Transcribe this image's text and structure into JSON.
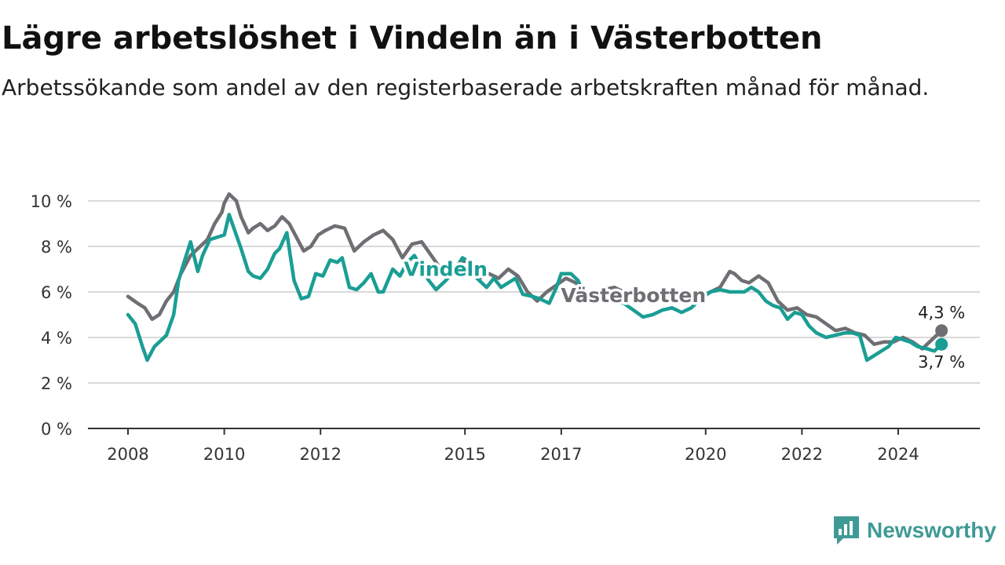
{
  "title": "Lägre arbetslöshet i Vindeln än i Västerbotten",
  "subtitle": "Arbetssökande som andel av den registerbaserade arbetskraften månad för månad.",
  "brand": "Newsworthy",
  "colors": {
    "vindeln": "#1a9e94",
    "vasterbotten": "#6e6e73",
    "grid": "#d9d9d9",
    "axis": "#333333",
    "brand": "#3f9a96"
  },
  "chart_data": {
    "type": "line",
    "x_type": "year",
    "xlim": [
      2008,
      2025.7
    ],
    "ylim": [
      0,
      10
    ],
    "y_ticks": [
      {
        "value": 0,
        "label": "0 %"
      },
      {
        "value": 2,
        "label": "2 %"
      },
      {
        "value": 4,
        "label": "4 %"
      },
      {
        "value": 6,
        "label": "6 %"
      },
      {
        "value": 8,
        "label": "8 %"
      },
      {
        "value": 10,
        "label": "10 %"
      }
    ],
    "x_ticks": [
      {
        "value": 2008,
        "label": "2008"
      },
      {
        "value": 2010,
        "label": "2010"
      },
      {
        "value": 2012,
        "label": "2012"
      },
      {
        "value": 2015,
        "label": "2015"
      },
      {
        "value": 2017,
        "label": "2017"
      },
      {
        "value": 2020,
        "label": "2020"
      },
      {
        "value": 2022,
        "label": "2022"
      },
      {
        "value": 2024,
        "label": "2024"
      }
    ],
    "grid": true,
    "series": [
      {
        "name": "Västerbotten",
        "key": "vasterbotten",
        "end_label": "4,3 %",
        "x": [
          2008.0,
          2008.2,
          2008.35,
          2008.5,
          2008.65,
          2008.8,
          2008.95,
          2009.1,
          2009.3,
          2009.5,
          2009.65,
          2009.8,
          2009.95,
          2010.0,
          2010.1,
          2010.25,
          2010.35,
          2010.5,
          2010.6,
          2010.75,
          2010.9,
          2011.05,
          2011.2,
          2011.35,
          2011.5,
          2011.65,
          2011.8,
          2011.95,
          2012.1,
          2012.3,
          2012.5,
          2012.7,
          2012.9,
          2013.1,
          2013.3,
          2013.5,
          2013.7,
          2013.9,
          2014.1,
          2014.3,
          2014.5,
          2014.7,
          2014.9,
          2015.1,
          2015.3,
          2015.5,
          2015.7,
          2015.9,
          2016.1,
          2016.3,
          2016.5,
          2016.7,
          2016.9,
          2017.1,
          2017.3,
          2017.5,
          2017.7,
          2017.9,
          2018.1,
          2018.3,
          2018.5,
          2018.7,
          2018.9,
          2019.1,
          2019.3,
          2019.5,
          2019.7,
          2019.9,
          2020.1,
          2020.3,
          2020.5,
          2020.6,
          2020.75,
          2020.9,
          2021.1,
          2021.3,
          2021.5,
          2021.7,
          2021.9,
          2022.1,
          2022.3,
          2022.5,
          2022.7,
          2022.9,
          2023.1,
          2023.3,
          2023.5,
          2023.7,
          2023.9,
          2024.1,
          2024.3,
          2024.5,
          2024.7,
          2024.9
        ],
        "y": [
          5.8,
          5.5,
          5.3,
          4.8,
          5.0,
          5.6,
          6.0,
          6.8,
          7.6,
          8.0,
          8.3,
          9.0,
          9.5,
          9.9,
          10.3,
          10.0,
          9.3,
          8.6,
          8.8,
          9.0,
          8.7,
          8.9,
          9.3,
          9.0,
          8.4,
          7.8,
          8.0,
          8.5,
          8.7,
          8.9,
          8.8,
          7.8,
          8.2,
          8.5,
          8.7,
          8.3,
          7.5,
          8.1,
          8.2,
          7.6,
          7.0,
          6.8,
          7.3,
          7.4,
          6.6,
          6.8,
          6.6,
          7.0,
          6.7,
          6.0,
          5.6,
          6.0,
          6.3,
          6.6,
          6.4,
          6.0,
          5.9,
          6.1,
          6.2,
          6.0,
          5.9,
          5.8,
          5.9,
          6.0,
          5.7,
          5.7,
          5.8,
          5.8,
          6.0,
          6.2,
          6.9,
          6.8,
          6.5,
          6.4,
          6.7,
          6.4,
          5.6,
          5.2,
          5.3,
          5.0,
          4.9,
          4.6,
          4.3,
          4.4,
          4.2,
          4.1,
          3.7,
          3.8,
          3.8,
          4.0,
          3.8,
          3.5,
          3.9,
          4.3
        ]
      },
      {
        "name": "Vindeln",
        "key": "vindeln",
        "end_label": "3,7 %",
        "x": [
          2008.0,
          2008.15,
          2008.3,
          2008.4,
          2008.55,
          2008.65,
          2008.8,
          2008.95,
          2009.05,
          2009.15,
          2009.3,
          2009.45,
          2009.55,
          2009.7,
          2009.85,
          2010.0,
          2010.1,
          2010.2,
          2010.35,
          2010.5,
          2010.6,
          2010.75,
          2010.9,
          2011.05,
          2011.15,
          2011.3,
          2011.45,
          2011.6,
          2011.75,
          2011.9,
          2012.05,
          2012.2,
          2012.35,
          2012.45,
          2012.6,
          2012.75,
          2012.9,
          2013.05,
          2013.2,
          2013.3,
          2013.5,
          2013.65,
          2013.8,
          2013.95,
          2014.1,
          2014.25,
          2014.4,
          2014.6,
          2014.8,
          2014.95,
          2015.1,
          2015.25,
          2015.45,
          2015.6,
          2015.75,
          2015.9,
          2016.05,
          2016.2,
          2016.4,
          2016.55,
          2016.75,
          2016.9,
          2017.0,
          2017.2,
          2017.35,
          2017.5,
          2017.7,
          2017.9,
          2018.1,
          2018.3,
          2018.5,
          2018.7,
          2018.9,
          2019.1,
          2019.3,
          2019.5,
          2019.7,
          2019.9,
          2020.1,
          2020.3,
          2020.5,
          2020.65,
          2020.8,
          2020.95,
          2021.1,
          2021.25,
          2021.4,
          2021.55,
          2021.7,
          2021.85,
          2022.0,
          2022.15,
          2022.3,
          2022.5,
          2022.7,
          2022.9,
          2023.05,
          2023.2,
          2023.35,
          2023.5,
          2023.65,
          2023.8,
          2023.95,
          2024.1,
          2024.25,
          2024.4,
          2024.6,
          2024.75,
          2024.9
        ],
        "y": [
          5.0,
          4.6,
          3.6,
          3.0,
          3.6,
          3.8,
          4.1,
          5.0,
          6.5,
          7.2,
          8.2,
          6.9,
          7.6,
          8.3,
          8.4,
          8.5,
          9.4,
          8.8,
          7.9,
          6.9,
          6.7,
          6.6,
          7.0,
          7.7,
          7.9,
          8.6,
          6.5,
          5.7,
          5.8,
          6.8,
          6.7,
          7.4,
          7.3,
          7.5,
          6.2,
          6.1,
          6.4,
          6.8,
          6.0,
          6.0,
          7.0,
          6.7,
          7.3,
          7.6,
          7.0,
          6.5,
          6.1,
          6.5,
          7.0,
          7.5,
          7.3,
          6.6,
          6.2,
          6.6,
          6.2,
          6.4,
          6.6,
          5.9,
          5.8,
          5.7,
          5.5,
          6.2,
          6.8,
          6.8,
          6.5,
          5.7,
          5.8,
          5.8,
          5.6,
          5.5,
          5.2,
          4.9,
          5.0,
          5.2,
          5.3,
          5.1,
          5.3,
          5.7,
          6.0,
          6.1,
          6.0,
          6.0,
          6.0,
          6.2,
          6.0,
          5.6,
          5.4,
          5.3,
          4.8,
          5.1,
          5.0,
          4.5,
          4.2,
          4.0,
          4.1,
          4.2,
          4.2,
          4.1,
          3.0,
          3.2,
          3.4,
          3.6,
          4.0,
          3.9,
          3.8,
          3.6,
          3.5,
          3.4,
          3.7
        ]
      }
    ],
    "series_labels": [
      {
        "key": "vindeln",
        "text": "Vindeln",
        "at_x": 2014.6,
        "at_y": 6.7
      },
      {
        "key": "vasterbotten",
        "text": "Västerbotten",
        "at_x": 2018.5,
        "at_y": 5.55
      }
    ]
  }
}
